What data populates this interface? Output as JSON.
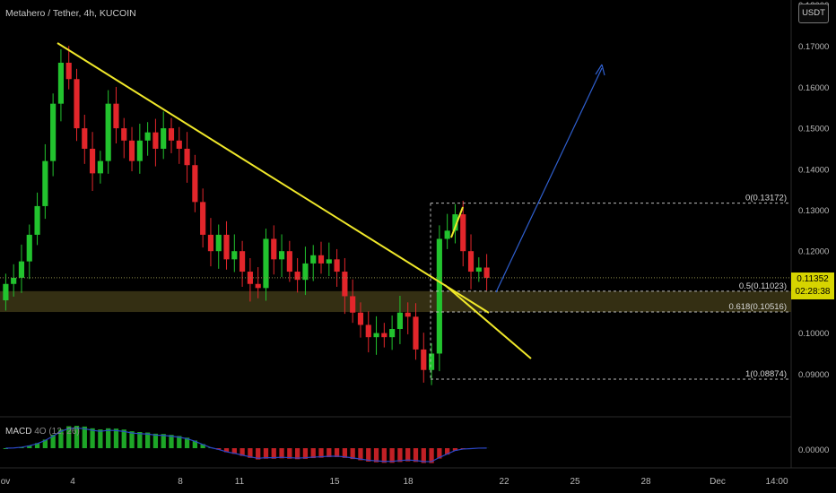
{
  "header": {
    "symbol_line": "Metahero / Tether, 4h, KUCOIN"
  },
  "currency_badge": "USDT",
  "price_axis": {
    "ticks": [
      "0.17000",
      "0.16000",
      "0.15000",
      "0.14000",
      "0.13000",
      "0.12000",
      "0.10000",
      "0.09000"
    ],
    "partial_top_tick": "0.18000"
  },
  "time_axis": {
    "labels": [
      "ov",
      "4",
      "8",
      "11",
      "15",
      "18",
      "22",
      "25",
      "28",
      "Dec",
      "14:00"
    ]
  },
  "current_price": {
    "value": "0.11352",
    "countdown": "02:28:38"
  },
  "fib_levels": [
    {
      "label": "0(0.13172)",
      "price": 0.13172
    },
    {
      "label": "0.5(0.11023)",
      "price": 0.11023
    },
    {
      "label": "0.618(0.10516)",
      "price": 0.10516
    },
    {
      "label": "1(0.08874)",
      "price": 0.08874
    }
  ],
  "macd": {
    "name": "MACD",
    "params": "4O (12, 26)",
    "zero_label": "0.00000"
  },
  "colors": {
    "up": "#22c32e",
    "down": "#e3262b",
    "trendline": "#f0e82a",
    "arrow": "#2f5fcf",
    "zone_fill": "#3a3415",
    "macd_line": "#2b47c8",
    "price_tag": "#d6d400"
  },
  "chart_data": {
    "type": "candlestick",
    "symbol": "Metahero / Tether",
    "interval": "4h",
    "exchange": "KUCOIN",
    "y_range": [
      0.085,
      0.18
    ],
    "close_approx": [
      0.112,
      0.1135,
      0.1175,
      0.124,
      0.131,
      0.142,
      0.156,
      0.166,
      0.162,
      0.15,
      0.145,
      0.139,
      0.142,
      0.156,
      0.15,
      0.147,
      0.142,
      0.147,
      0.149,
      0.145,
      0.15,
      0.147,
      0.145,
      0.141,
      0.132,
      0.124,
      0.12,
      0.124,
      0.118,
      0.12,
      0.115,
      0.112,
      0.111,
      0.123,
      0.118,
      0.12,
      0.115,
      0.113,
      0.117,
      0.119,
      0.117,
      0.118,
      0.115,
      0.109,
      0.105,
      0.102,
      0.099,
      0.1,
      0.099,
      0.101,
      0.105,
      0.104,
      0.096,
      0.091,
      0.095,
      0.123,
      0.125,
      0.129,
      0.12,
      0.115,
      0.116,
      0.1135
    ],
    "annotations": [
      "descending trendline",
      "support zone 0.10516–0.11023",
      "projection arrow up"
    ]
  }
}
